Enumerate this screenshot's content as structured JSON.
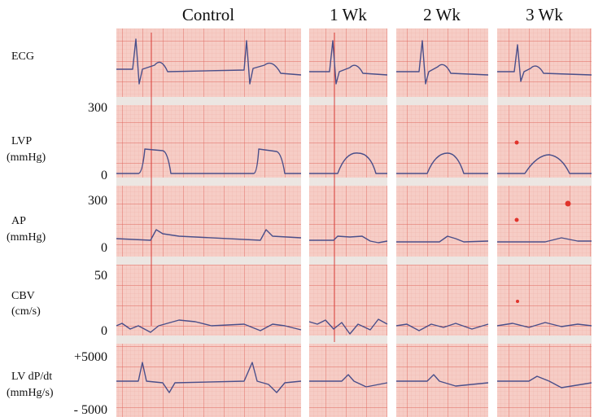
{
  "columns": [
    "Control",
    "1 Wk",
    "2 Wk",
    "3 Wk"
  ],
  "rows": [
    {
      "label": "ECG"
    },
    {
      "label": "LVP",
      "unit": "(mmHg)",
      "top": "300",
      "bottom": "0"
    },
    {
      "label": "AP",
      "unit": "(mmHg)",
      "top": "300",
      "bottom": "0"
    },
    {
      "label": "CBV",
      "unit": "(cm/s)",
      "top": "50",
      "bottom": "0"
    },
    {
      "label": "LV dP/dt",
      "unit": "(mmHg/s)",
      "top": "+5000",
      "bottom": "- 5000"
    }
  ]
}
